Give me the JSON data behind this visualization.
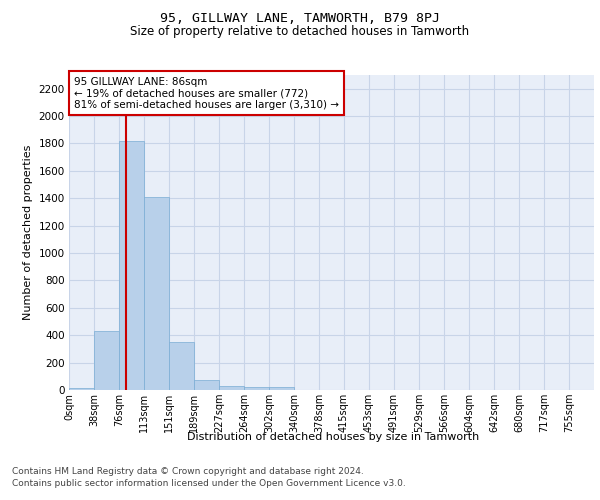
{
  "title1": "95, GILLWAY LANE, TAMWORTH, B79 8PJ",
  "title2": "Size of property relative to detached houses in Tamworth",
  "xlabel": "Distribution of detached houses by size in Tamworth",
  "ylabel": "Number of detached properties",
  "bin_labels": [
    "0sqm",
    "38sqm",
    "76sqm",
    "113sqm",
    "151sqm",
    "189sqm",
    "227sqm",
    "264sqm",
    "302sqm",
    "340sqm",
    "378sqm",
    "415sqm",
    "453sqm",
    "491sqm",
    "529sqm",
    "566sqm",
    "604sqm",
    "642sqm",
    "680sqm",
    "717sqm",
    "755sqm"
  ],
  "bar_heights": [
    15,
    430,
    1820,
    1410,
    350,
    75,
    30,
    25,
    20,
    0,
    0,
    0,
    0,
    0,
    0,
    0,
    0,
    0,
    0,
    0,
    0
  ],
  "bar_color": "#b8d0ea",
  "bar_edge_color": "#7aadd4",
  "grid_color": "#c8d4e8",
  "background_color": "#e8eef8",
  "vline_color": "#cc0000",
  "annotation_text": "95 GILLWAY LANE: 86sqm\n← 19% of detached houses are smaller (772)\n81% of semi-detached houses are larger (3,310) →",
  "annotation_box_color": "#cc0000",
  "ylim": [
    0,
    2300
  ],
  "yticks": [
    0,
    200,
    400,
    600,
    800,
    1000,
    1200,
    1400,
    1600,
    1800,
    2000,
    2200
  ],
  "footer1": "Contains HM Land Registry data © Crown copyright and database right 2024.",
  "footer2": "Contains public sector information licensed under the Open Government Licence v3.0."
}
